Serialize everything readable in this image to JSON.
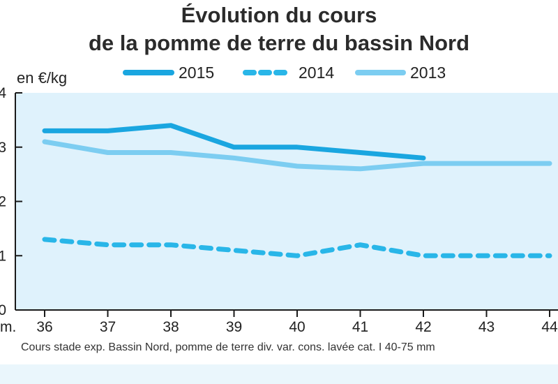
{
  "title_line1": "Évolution du cours",
  "title_line2": "de la pomme de terre du bassin Nord",
  "source_note": "Cours stade exp. Bassin Nord, pomme de terre div. var. cons. lavée cat. I 40-75 mm",
  "colors": {
    "plot_bg": "#dff2fc",
    "series_2015": "#1aa6e0",
    "series_2014": "#29b6e8",
    "series_2013": "#7ccdf1"
  },
  "chart_data": {
    "type": "line",
    "ylabel": "en €/kg",
    "xlabel_partial": "m.",
    "x": [
      36,
      37,
      38,
      39,
      40,
      41,
      42,
      43,
      44
    ],
    "x_tick_labels": [
      "36",
      "37",
      "38",
      "39",
      "40",
      "41",
      "42",
      "43",
      "44"
    ],
    "y_tick_labels": [
      "4",
      "3",
      "2",
      "1",
      "0"
    ],
    "ylim": [
      0,
      0.4
    ],
    "legend_position": "top",
    "series": [
      {
        "name": "2015",
        "style": "solid-thick",
        "x": [
          36,
          37,
          38,
          39,
          40,
          41,
          42
        ],
        "values": [
          0.33,
          0.33,
          0.34,
          0.3,
          0.3,
          0.29,
          0.28
        ]
      },
      {
        "name": "2014",
        "style": "dashed",
        "x": [
          36,
          37,
          38,
          39,
          40,
          41,
          42,
          43,
          44
        ],
        "values": [
          0.13,
          0.12,
          0.12,
          0.11,
          0.1,
          0.12,
          0.1,
          0.1,
          0.1
        ]
      },
      {
        "name": "2013",
        "style": "solid",
        "x": [
          36,
          37,
          38,
          39,
          40,
          41,
          42,
          43,
          44
        ],
        "values": [
          0.31,
          0.29,
          0.29,
          0.28,
          0.265,
          0.26,
          0.27,
          0.27,
          0.27
        ]
      }
    ]
  }
}
